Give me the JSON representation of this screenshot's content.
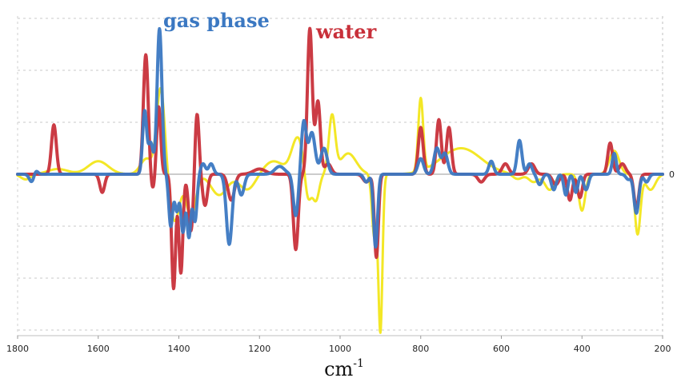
{
  "chart_data": {
    "type": "line",
    "title": "",
    "xlabel": "cm-1",
    "xlabel_base": "cm",
    "xlabel_sup": "-1",
    "ylabel": "",
    "x_reversed": true,
    "xlim": [
      1800,
      200
    ],
    "ylim": [
      -3,
      3
    ],
    "xticks": [
      1800,
      1600,
      1400,
      1200,
      1000,
      800,
      600,
      400,
      200
    ],
    "ytick_labels": [
      {
        "value": 0,
        "label": "0"
      }
    ],
    "grid": "horizontal dashed",
    "legend": "inline labels at top",
    "series": [
      {
        "name": "gas phase",
        "color": "#3b78c2",
        "peaks": [
          [
            1765,
            -0.15,
            6
          ],
          [
            1755,
            0.08,
            5
          ],
          [
            1485,
            1.2,
            5
          ],
          [
            1470,
            0.6,
            6
          ],
          [
            1448,
            2.8,
            6
          ],
          [
            1420,
            -1.0,
            5
          ],
          [
            1405,
            -0.7,
            5
          ],
          [
            1390,
            -1.1,
            5
          ],
          [
            1375,
            -1.2,
            5
          ],
          [
            1360,
            -0.9,
            5
          ],
          [
            1340,
            0.2,
            6
          ],
          [
            1320,
            0.2,
            6
          ],
          [
            1275,
            -1.35,
            7
          ],
          [
            1245,
            -0.4,
            7
          ],
          [
            1150,
            0.15,
            12
          ],
          [
            1110,
            -0.8,
            6
          ],
          [
            1090,
            1.0,
            6
          ],
          [
            1070,
            0.8,
            8
          ],
          [
            1040,
            0.5,
            8
          ],
          [
            935,
            -0.15,
            6
          ],
          [
            912,
            -1.4,
            5
          ],
          [
            800,
            0.3,
            7
          ],
          [
            760,
            0.5,
            7
          ],
          [
            740,
            0.4,
            7
          ],
          [
            625,
            0.25,
            6
          ],
          [
            555,
            0.65,
            6
          ],
          [
            530,
            0.2,
            6
          ],
          [
            505,
            -0.2,
            6
          ],
          [
            470,
            -0.3,
            6
          ],
          [
            440,
            -0.4,
            5
          ],
          [
            415,
            -0.35,
            5
          ],
          [
            390,
            -0.3,
            6
          ],
          [
            320,
            0.4,
            5
          ],
          [
            285,
            -0.1,
            6
          ],
          [
            265,
            -0.75,
            6
          ],
          [
            240,
            -0.15,
            6
          ]
        ]
      },
      {
        "name": "water",
        "color": "#c8303a",
        "peaks": [
          [
            1710,
            0.95,
            6
          ],
          [
            1590,
            -0.35,
            6
          ],
          [
            1482,
            2.3,
            6
          ],
          [
            1465,
            -0.3,
            5
          ],
          [
            1450,
            1.3,
            5
          ],
          [
            1413,
            -2.2,
            5
          ],
          [
            1395,
            -1.9,
            5
          ],
          [
            1370,
            -1.1,
            6
          ],
          [
            1355,
            1.2,
            5
          ],
          [
            1335,
            -0.6,
            6
          ],
          [
            1270,
            -0.5,
            8
          ],
          [
            1200,
            0.1,
            15
          ],
          [
            1110,
            -1.45,
            6
          ],
          [
            1075,
            2.8,
            6
          ],
          [
            1055,
            1.4,
            6
          ],
          [
            1030,
            0.2,
            8
          ],
          [
            935,
            -0.15,
            8
          ],
          [
            910,
            -1.6,
            5
          ],
          [
            800,
            0.9,
            6
          ],
          [
            755,
            1.05,
            6
          ],
          [
            730,
            0.9,
            6
          ],
          [
            650,
            -0.15,
            8
          ],
          [
            590,
            0.2,
            8
          ],
          [
            525,
            0.2,
            8
          ],
          [
            465,
            -0.2,
            8
          ],
          [
            430,
            -0.5,
            6
          ],
          [
            405,
            -0.45,
            6
          ],
          [
            330,
            0.6,
            6
          ],
          [
            300,
            0.2,
            8
          ],
          [
            265,
            -0.65,
            6
          ]
        ]
      },
      {
        "name": "",
        "color": "#f2e61a",
        "peaks": [
          [
            1780,
            -0.1,
            12
          ],
          [
            1700,
            0.1,
            25
          ],
          [
            1600,
            0.25,
            25
          ],
          [
            1480,
            0.3,
            15
          ],
          [
            1445,
            1.65,
            10
          ],
          [
            1410,
            -0.9,
            12
          ],
          [
            1370,
            -0.8,
            12
          ],
          [
            1300,
            -0.4,
            20
          ],
          [
            1230,
            -0.3,
            20
          ],
          [
            1165,
            0.25,
            25
          ],
          [
            1105,
            0.7,
            15
          ],
          [
            1080,
            -0.6,
            8
          ],
          [
            1060,
            -0.5,
            8
          ],
          [
            1020,
            1.1,
            8
          ],
          [
            980,
            0.4,
            20
          ],
          [
            915,
            -1.2,
            6
          ],
          [
            900,
            -3.0,
            5
          ],
          [
            800,
            1.4,
            6
          ],
          [
            700,
            0.5,
            50
          ],
          [
            560,
            -0.1,
            12
          ],
          [
            520,
            -0.15,
            12
          ],
          [
            480,
            -0.3,
            12
          ],
          [
            400,
            -0.7,
            8
          ],
          [
            320,
            0.45,
            12
          ],
          [
            262,
            -1.15,
            7
          ],
          [
            230,
            -0.3,
            12
          ]
        ]
      }
    ]
  }
}
